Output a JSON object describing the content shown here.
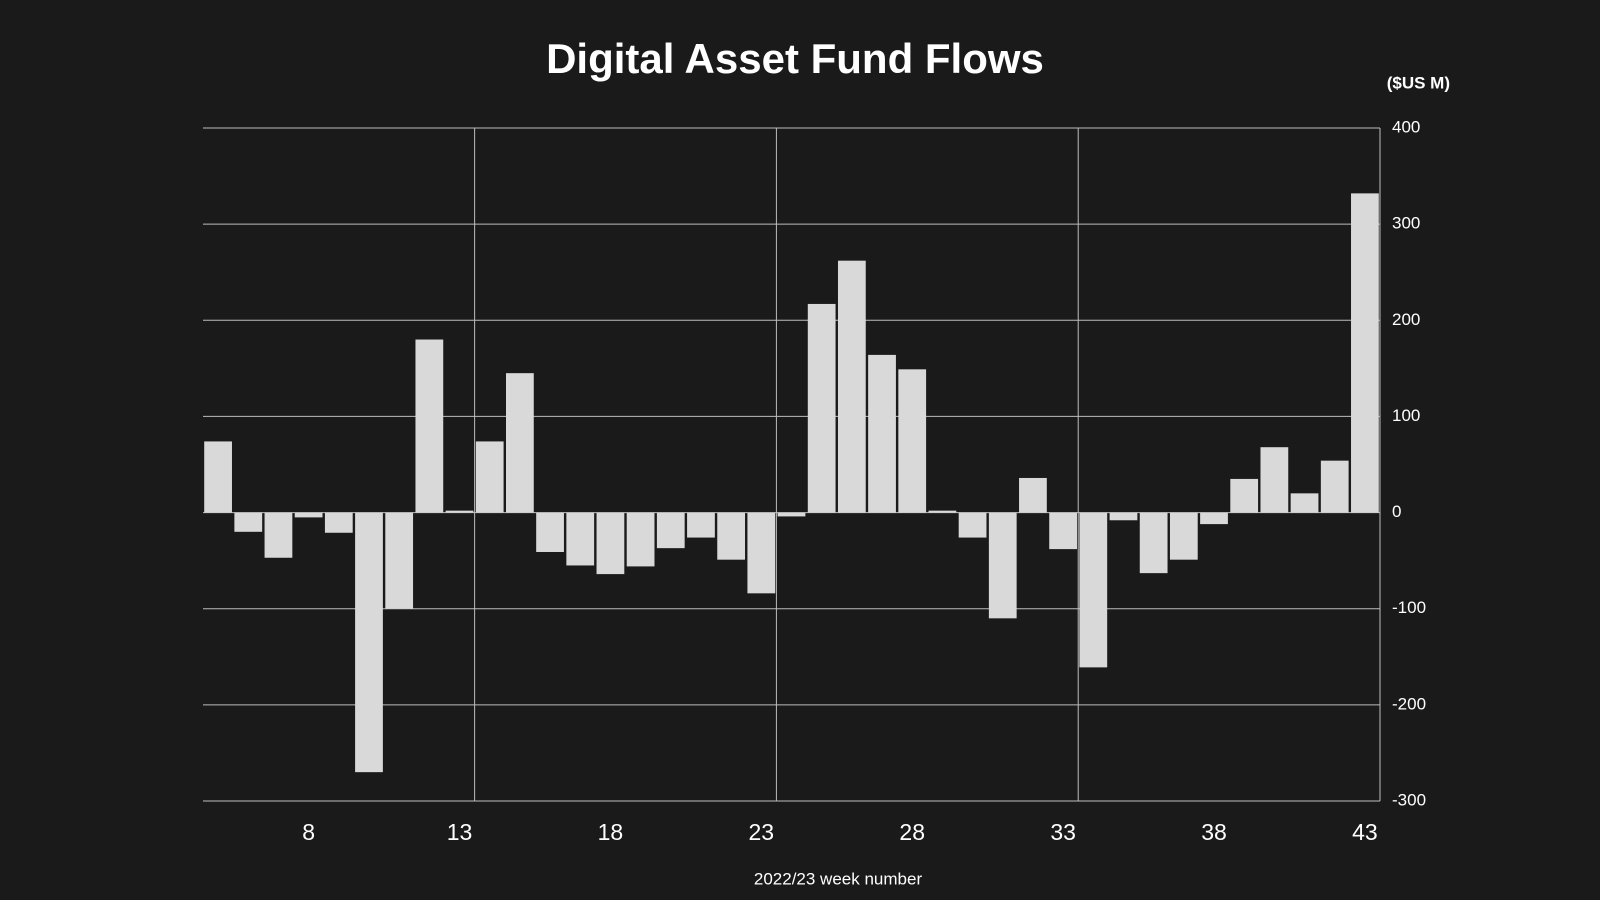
{
  "chart_data": {
    "type": "bar",
    "title": "Digital Asset Fund Flows",
    "unit_label": "($US M)",
    "xlabel": "2022/23 week number",
    "categories": [
      null,
      null,
      null,
      8,
      null,
      null,
      null,
      null,
      13,
      null,
      null,
      null,
      null,
      18,
      null,
      null,
      null,
      null,
      23,
      null,
      null,
      null,
      null,
      28,
      null,
      null,
      null,
      null,
      33,
      null,
      null,
      null,
      null,
      38,
      null,
      null,
      null,
      null,
      43
    ],
    "values": [
      74,
      -20,
      -47,
      -5,
      -21,
      -270,
      -100,
      180,
      2,
      74,
      145,
      -41,
      -55,
      -64,
      -56,
      -37,
      -26,
      -49,
      -84,
      -4,
      217,
      262,
      164,
      149,
      2,
      -26,
      -110,
      36,
      -38,
      -161,
      -8,
      -63,
      -49,
      -12,
      35,
      68,
      20,
      54,
      332
    ],
    "color": "#d9d9d9",
    "ylim": [
      -300,
      400
    ],
    "yticks": [
      -300,
      -200,
      -100,
      0,
      100,
      200,
      300,
      400
    ],
    "grid": true,
    "y_axis_side": "right"
  }
}
